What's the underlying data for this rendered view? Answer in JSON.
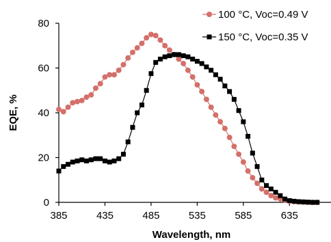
{
  "chart_data": {
    "type": "line",
    "title": "",
    "xlabel": "Wavelength, nm",
    "ylabel": "EQE, %",
    "xlim": [
      385,
      680
    ],
    "ylim": [
      0,
      80
    ],
    "x_ticks": [
      385,
      435,
      485,
      535,
      585,
      635
    ],
    "y_ticks": [
      0,
      20,
      40,
      60,
      80
    ],
    "grid": false,
    "legend_position": "top-right",
    "series": [
      {
        "name": "100 °C, Voc=0.49 V",
        "color": "#d4706a",
        "marker": "circle",
        "x": [
          385,
          390,
          395,
          400,
          405,
          410,
          415,
          420,
          425,
          430,
          435,
          440,
          445,
          450,
          455,
          460,
          465,
          470,
          475,
          480,
          485,
          490,
          495,
          500,
          505,
          510,
          515,
          520,
          525,
          530,
          535,
          540,
          545,
          550,
          555,
          560,
          565,
          570,
          575,
          580,
          585,
          590,
          595,
          600,
          605,
          610,
          615,
          620,
          625,
          630,
          635,
          640,
          645,
          650,
          655,
          660,
          665
        ],
        "values": [
          41.5,
          40.5,
          42.5,
          44.5,
          45,
          45.5,
          47,
          48,
          51,
          53,
          56,
          57,
          57,
          59,
          61.5,
          64.5,
          67,
          69,
          71,
          73.5,
          75,
          74.5,
          72.5,
          70,
          68,
          66,
          64,
          62,
          59,
          56,
          52.5,
          49.5,
          46,
          42.5,
          39,
          36,
          33,
          29,
          25,
          21.5,
          18,
          14,
          11,
          8.5,
          6,
          4.5,
          3,
          2,
          1.5,
          1,
          0.5,
          0.3,
          0.2,
          0.1,
          0,
          0,
          0
        ]
      },
      {
        "name": "150 °C, Voc=0.35 V",
        "color": "#000000",
        "marker": "square",
        "x": [
          385,
          390,
          395,
          400,
          405,
          410,
          415,
          420,
          425,
          430,
          435,
          440,
          445,
          450,
          455,
          460,
          465,
          470,
          475,
          480,
          485,
          490,
          495,
          500,
          505,
          510,
          515,
          520,
          525,
          530,
          535,
          540,
          545,
          550,
          555,
          560,
          565,
          570,
          575,
          580,
          585,
          590,
          595,
          600,
          605,
          610,
          615,
          620,
          625,
          630,
          635,
          640,
          645,
          650,
          655,
          660,
          665
        ],
        "values": [
          14,
          16,
          17,
          18,
          18.5,
          19,
          18.5,
          19,
          19.5,
          19.5,
          18.5,
          18,
          18.5,
          19.5,
          21.5,
          27,
          33.5,
          40,
          43.5,
          50,
          57.5,
          62.5,
          64,
          65,
          65.5,
          66,
          66,
          65.5,
          65,
          64,
          63,
          62,
          60.5,
          59,
          57,
          55,
          52,
          49.5,
          46,
          41,
          36,
          29.5,
          22,
          16,
          10,
          7.5,
          6,
          4.5,
          3,
          1.5,
          0.8,
          0.5,
          0.3,
          0.2,
          0.1,
          0,
          0
        ]
      }
    ]
  }
}
